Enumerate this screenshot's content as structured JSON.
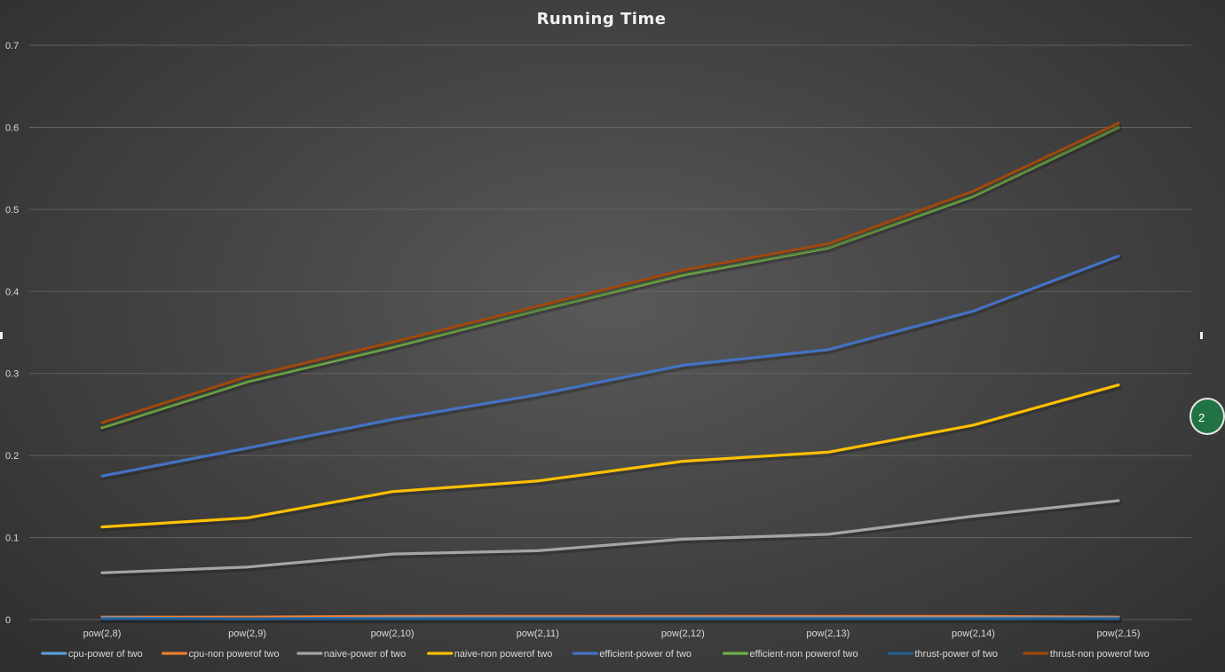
{
  "chart_data": {
    "type": "line",
    "title": "Running Time",
    "xlabel": "",
    "ylabel": "",
    "categories": [
      "pow(2,8)",
      "pow(2,9)",
      "pow(2,10)",
      "pow(2,11)",
      "pow(2,12)",
      "pow(2,13)",
      "pow(2,14)",
      "pow(2,15)"
    ],
    "ylim": [
      0,
      0.7
    ],
    "yticks": [
      "0",
      "0.1",
      "0.2",
      "0.3",
      "0.4",
      "0.5",
      "0.6",
      "0.7"
    ],
    "grid": true,
    "legend_position": "bottom",
    "series": [
      {
        "name": "cpu-power of two",
        "color": "#5b9bd5",
        "values": [
          0.002,
          0.001,
          0.002,
          0.002,
          0.002,
          0.002,
          0.002,
          0.002
        ]
      },
      {
        "name": "cpu-non powerof two",
        "color": "#ed7d31",
        "values": [
          0.003,
          0.003,
          0.004,
          0.004,
          0.004,
          0.004,
          0.004,
          0.003
        ]
      },
      {
        "name": "naive-power of two",
        "color": "#a5a5a5",
        "values": [
          0.057,
          0.064,
          0.08,
          0.084,
          0.098,
          0.104,
          0.126,
          0.145
        ]
      },
      {
        "name": "naive-non powerof two",
        "color": "#ffc000",
        "values": [
          0.113,
          0.124,
          0.156,
          0.169,
          0.193,
          0.204,
          0.237,
          0.286
        ]
      },
      {
        "name": "efficient-power of two",
        "color": "#4472c4",
        "values": [
          0.175,
          0.209,
          0.244,
          0.274,
          0.31,
          0.329,
          0.376,
          0.443
        ]
      },
      {
        "name": "efficient-non powerof two",
        "color": "#70ad47",
        "values": [
          0.234,
          0.29,
          0.332,
          0.377,
          0.42,
          0.453,
          0.516,
          0.6
        ]
      },
      {
        "name": "thrust-power of two",
        "color": "#255e91",
        "values": [
          0.001,
          0.001,
          0.001,
          0.001,
          0.001,
          0.001,
          0.001,
          0.001
        ]
      },
      {
        "name": "thrust-non powerof two",
        "color": "#9e480e",
        "values": [
          0.24,
          0.296,
          0.338,
          0.382,
          0.426,
          0.458,
          0.522,
          0.605
        ]
      }
    ]
  },
  "side_badge": {
    "text": "2",
    "color": "#217346"
  }
}
